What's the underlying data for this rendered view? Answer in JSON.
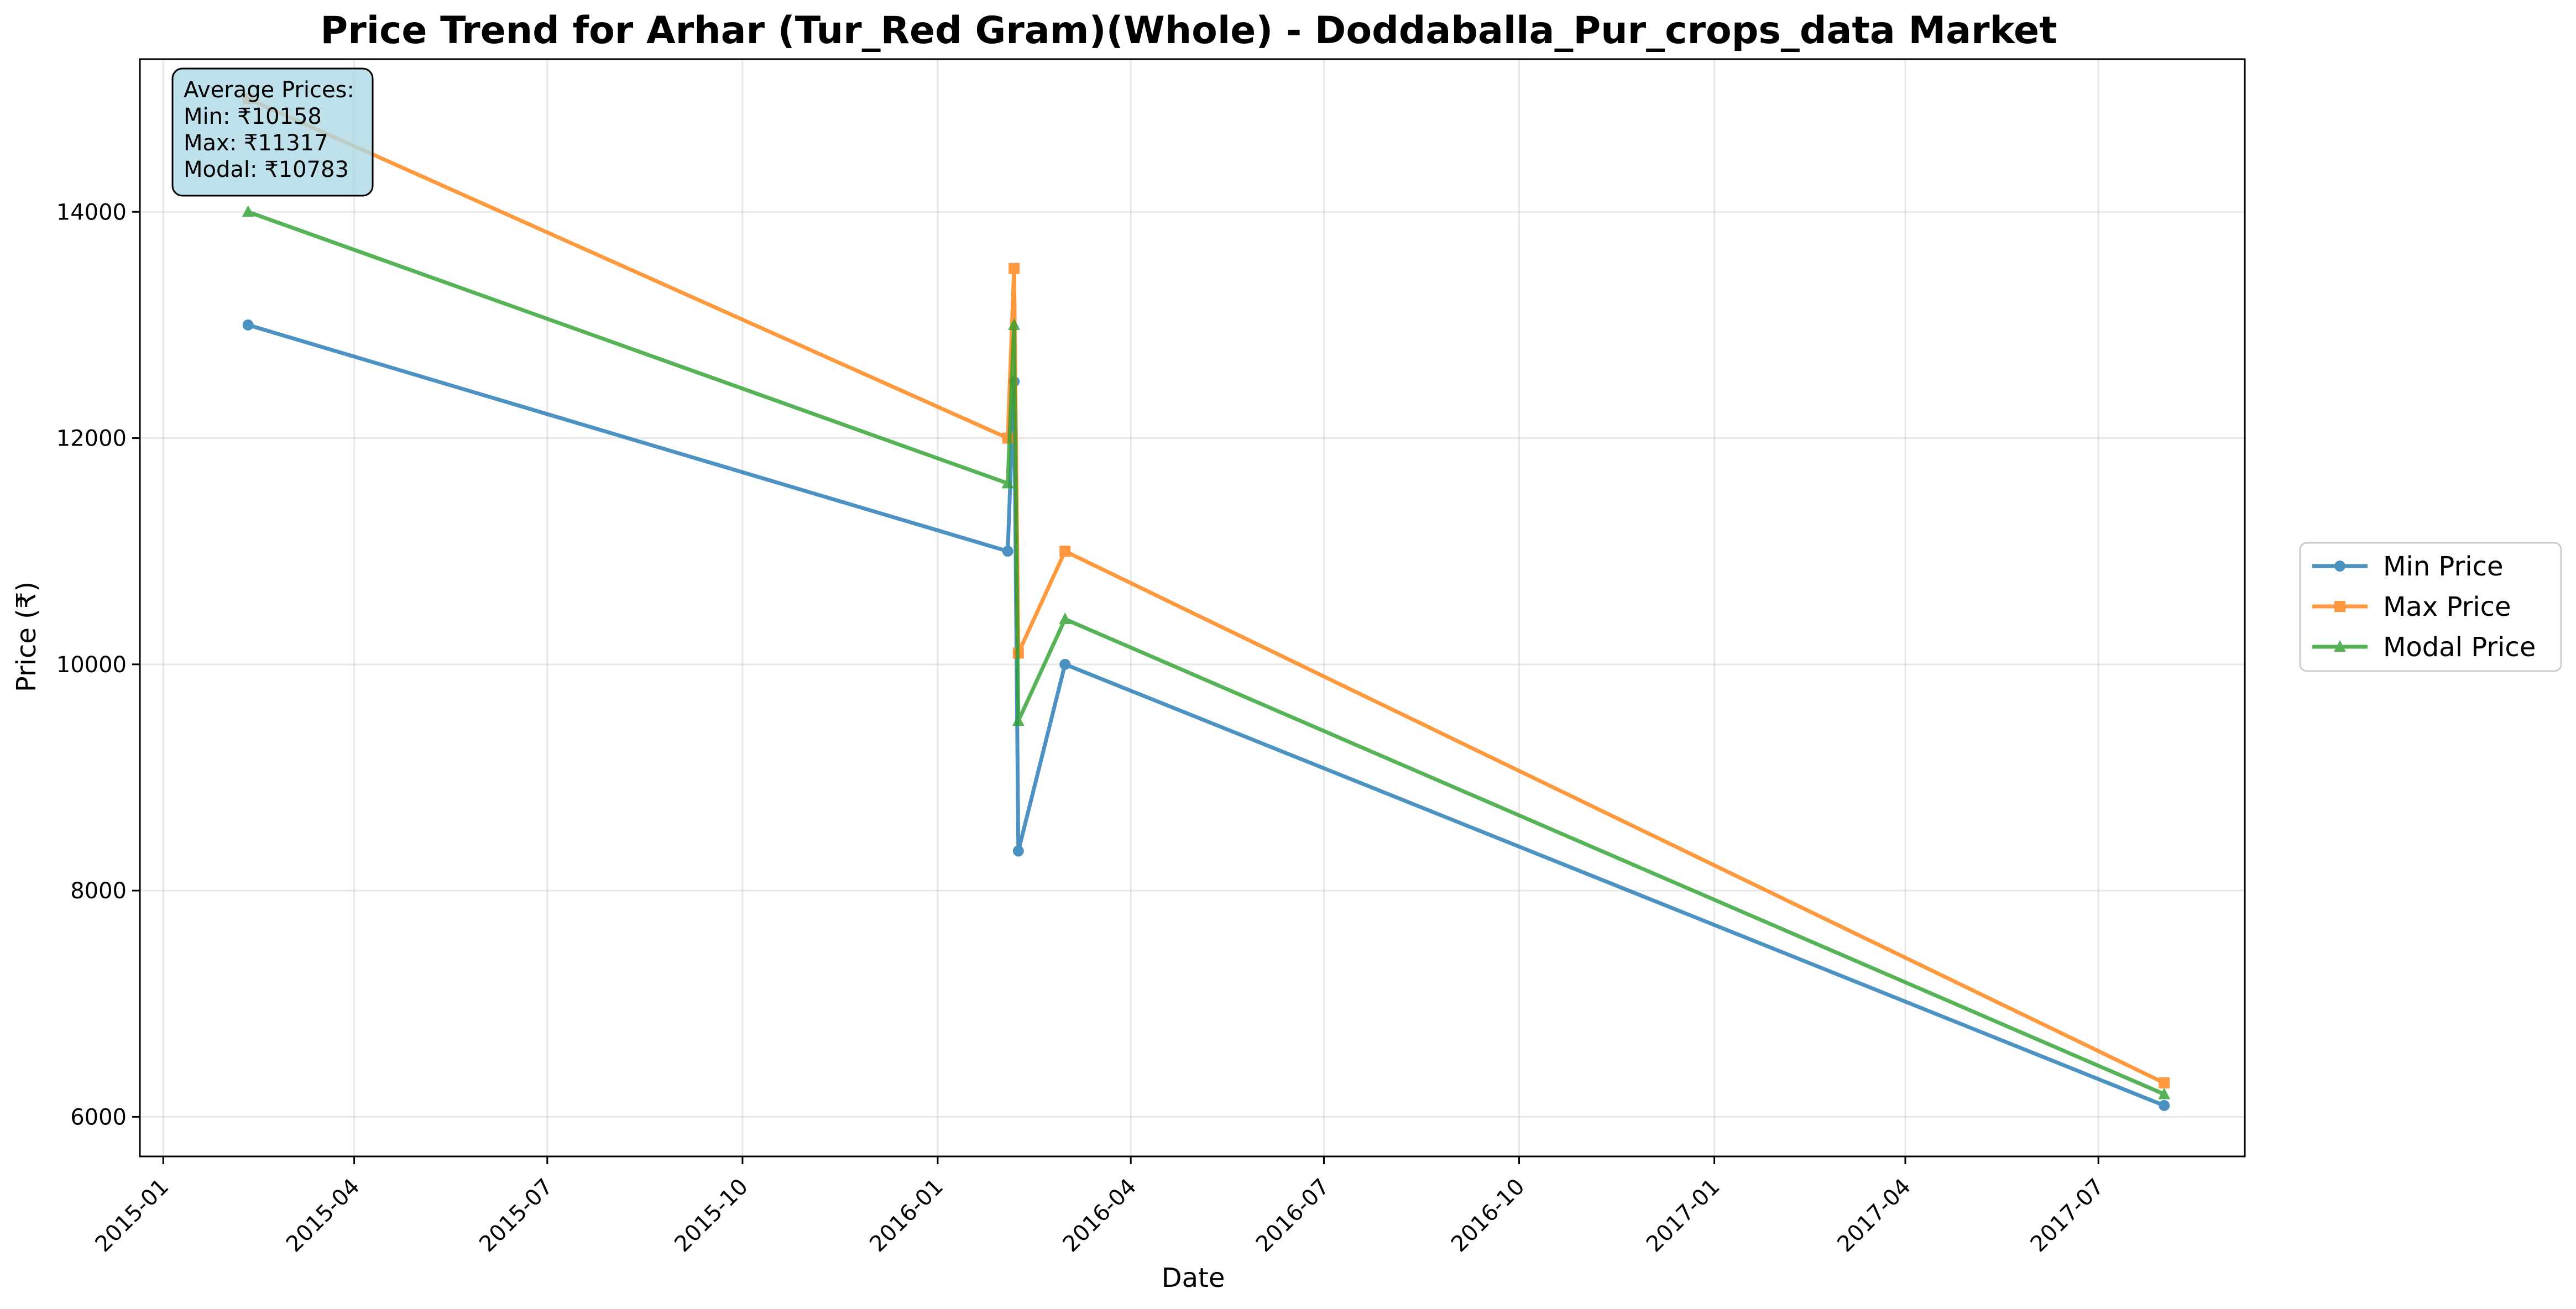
{
  "chart_data": {
    "type": "line",
    "title": "Price Trend for Arhar (Tur_Red Gram)(Whole) - Doddaballa_Pur_crops_data Market",
    "xlabel": "Date",
    "ylabel": "Price (₹)",
    "x_ticks": [
      "2015-01",
      "2015-04",
      "2015-07",
      "2015-10",
      "2016-01",
      "2016-04",
      "2016-07",
      "2016-10",
      "2017-01",
      "2017-04",
      "2017-07"
    ],
    "y_ticks": [
      "6000",
      "8000",
      "10000",
      "12000",
      "14000"
    ],
    "xlim": [
      "2014-12-21",
      "2017-09-08"
    ],
    "ylim": [
      5650,
      15350
    ],
    "grid": true,
    "legend_position": "outside-right",
    "series": [
      {
        "name": "Min Price",
        "color": "#1f77b4",
        "marker": "circle",
        "points": [
          {
            "x": "2015-02-10",
            "y": 13000
          },
          {
            "x": "2016-02-03",
            "y": 11000
          },
          {
            "x": "2016-02-06",
            "y": 12500
          },
          {
            "x": "2016-02-08",
            "y": 8350
          },
          {
            "x": "2016-03-01",
            "y": 10000
          },
          {
            "x": "2017-08-01",
            "y": 6100
          }
        ]
      },
      {
        "name": "Max Price",
        "color": "#ff7f0e",
        "marker": "square",
        "points": [
          {
            "x": "2015-02-10",
            "y": 15000
          },
          {
            "x": "2016-02-03",
            "y": 12000
          },
          {
            "x": "2016-02-06",
            "y": 13500
          },
          {
            "x": "2016-02-08",
            "y": 10100
          },
          {
            "x": "2016-03-01",
            "y": 11000
          },
          {
            "x": "2017-08-01",
            "y": 6300
          }
        ]
      },
      {
        "name": "Modal Price",
        "color": "#2ca02c",
        "marker": "triangle",
        "points": [
          {
            "x": "2015-02-10",
            "y": 14000
          },
          {
            "x": "2016-02-03",
            "y": 11600
          },
          {
            "x": "2016-02-06",
            "y": 13000
          },
          {
            "x": "2016-02-08",
            "y": 9500
          },
          {
            "x": "2016-03-01",
            "y": 10400
          },
          {
            "x": "2017-08-01",
            "y": 6200
          }
        ]
      }
    ],
    "annotation": {
      "lines": [
        "Average Prices:",
        "Min: ₹10158",
        "Max: ₹11317",
        "Modal: ₹10783"
      ],
      "background": "#add8e6"
    }
  }
}
